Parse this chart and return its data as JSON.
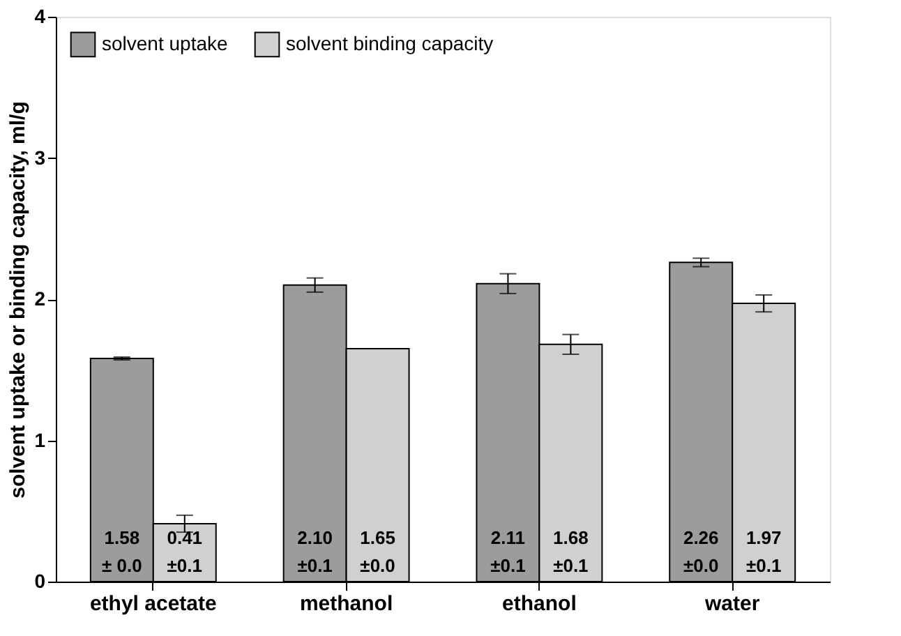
{
  "chart_data": {
    "type": "bar",
    "ylabel": "solvent uptake or binding capacity, ml/g",
    "categories": [
      "ethyl acetate",
      "methanol",
      "ethanol",
      "water"
    ],
    "series": [
      {
        "name": "solvent uptake",
        "color": "#9c9c9c",
        "values": [
          1.58,
          2.1,
          2.11,
          2.26
        ],
        "errors": [
          0.01,
          0.05,
          0.07,
          0.03
        ],
        "value_labels": [
          "1.58\n± 0.0",
          "2.10\n±0.1",
          "2.11\n±0.1",
          "2.26\n±0.0"
        ]
      },
      {
        "name": "solvent binding capacity",
        "color": "#d0d0d0",
        "values": [
          0.41,
          1.65,
          1.68,
          1.97
        ],
        "errors": [
          0.06,
          null,
          0.07,
          0.06
        ],
        "value_labels": [
          "0.41\n±0.1",
          "1.65\n±0.0",
          "1.68\n±0.1",
          "1.97\n±0.1"
        ]
      }
    ],
    "ylim": [
      0,
      4
    ],
    "yticks": [
      0,
      1,
      2,
      3,
      4
    ],
    "grid": false,
    "legend": "top left"
  }
}
